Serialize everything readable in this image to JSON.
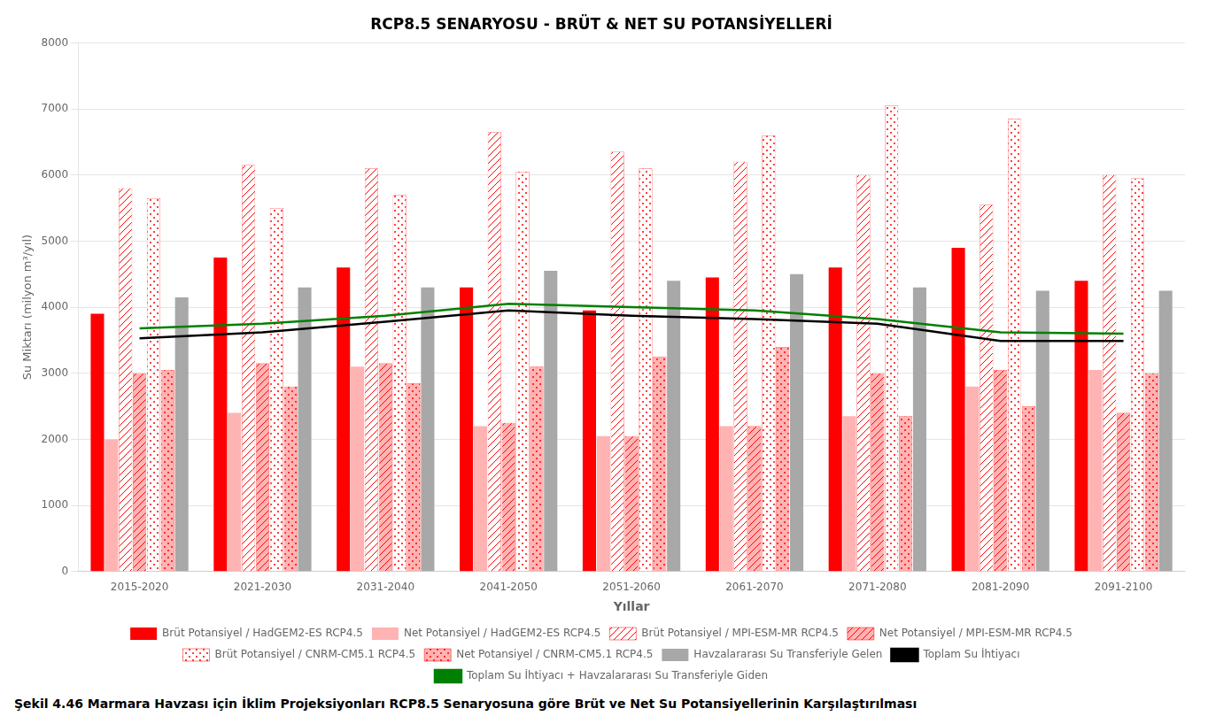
{
  "chart_data": {
    "type": "bar",
    "title": "RCP8.5 SENARYOSU - BRÜT & NET SU POTANSİYELLERİ",
    "xlabel": "Yıllar",
    "ylabel": "Su Miktarı (milyon m³/yıl)",
    "caption": "Şekil 4.46 Marmara Havzası için İklim Projeksiyonları RCP8.5 Senaryosuna göre Brüt ve Net Su Potansiyellerinin Karşılaştırılması",
    "categories": [
      "2015-2020",
      "2021-2030",
      "2031-2040",
      "2041-2050",
      "2051-2060",
      "2061-2070",
      "2071-2080",
      "2081-2090",
      "2091-2100"
    ],
    "ylim": [
      0,
      8000
    ],
    "yticks": [
      0,
      1000,
      2000,
      3000,
      4000,
      5000,
      6000,
      7000,
      8000
    ],
    "grid": true,
    "legend": "bottom",
    "series": [
      {
        "name": "Brüt Potansiyel / HadGEM2-ES RCP4.5",
        "type": "bar",
        "color": "#FF0000",
        "values": [
          3900,
          4750,
          4600,
          4300,
          3950,
          4450,
          4600,
          4900,
          4400
        ]
      },
      {
        "name": "Net Potansiyel / HadGEM2-ES RCP4.5",
        "type": "bar",
        "color": "#FFB3B3",
        "values": [
          2000,
          2400,
          3100,
          2200,
          2050,
          2200,
          2350,
          2800,
          3050
        ]
      },
      {
        "name": "Brüt Potansiyel / MPI-ESM-MR RCP4.5",
        "type": "bar",
        "color": "#FF0000",
        "values": [
          5800,
          6150,
          6100,
          6650,
          6350,
          6200,
          6000,
          5550,
          6000
        ]
      },
      {
        "name": "Net Potansiyel / MPI-ESM-MR RCP4.5",
        "type": "bar",
        "color": "#FFB3B3",
        "values": [
          3000,
          3150,
          3150,
          2250,
          2050,
          2200,
          3000,
          3050,
          2400
        ]
      },
      {
        "name": "Brüt Potansiyel / CNRM-CM5.1 RCP4.5",
        "type": "bar",
        "color": "#FF0000",
        "values": [
          5650,
          5500,
          5700,
          6050,
          6100,
          6600,
          7050,
          6850,
          5950
        ]
      },
      {
        "name": "Net Potansiyel / CNRM-CM5.1 RCP4.5",
        "type": "bar",
        "color": "#FFB3B3",
        "values": [
          3050,
          2800,
          2850,
          3100,
          3250,
          3400,
          2350,
          2500,
          3000
        ]
      },
      {
        "name": "Havzalararası Su Transferiyle Gelen",
        "type": "bar",
        "color": "#A8A8A8",
        "values": [
          4150,
          4300,
          4300,
          4550,
          4400,
          4500,
          4300,
          4250,
          4250
        ]
      },
      {
        "name": "Toplam Su İhtiyacı",
        "type": "line",
        "color": "#000000",
        "values": [
          3530,
          3620,
          3780,
          3950,
          3870,
          3820,
          3750,
          3490,
          3490
        ]
      },
      {
        "name": "Toplam Su İhtiyacı + Havzalararası Su Transferiyle Giden",
        "type": "line",
        "color": "#008000",
        "values": [
          3680,
          3750,
          3870,
          4050,
          4000,
          3950,
          3820,
          3620,
          3600
        ]
      }
    ]
  }
}
